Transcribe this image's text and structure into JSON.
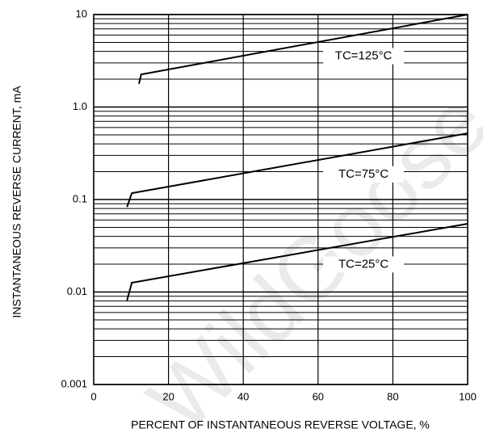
{
  "chart_data": {
    "type": "line",
    "ylabel": "INSTANTANEOUS REVERSE CURRENT, mA",
    "xlabel": "PERCENT OF INSTANTANEOUS REVERSE VOLTAGE, %",
    "watermark": "WildGoose",
    "xlim": [
      0,
      100
    ],
    "xticks": [
      0,
      20,
      40,
      60,
      80,
      100
    ],
    "ylim": [
      0.001,
      10
    ],
    "yticks": [
      0.001,
      0.01,
      0.1,
      {
        "value": 1,
        "label": "1.0"
      },
      10
    ],
    "ylog": true,
    "grid": true,
    "minor_grid": true,
    "series": [
      {
        "name": "TC=125°C",
        "color": "#000000",
        "x": [
          12.1,
          12.7,
          100
        ],
        "values": [
          1.78,
          2.25,
          10
        ]
      },
      {
        "name": "TC=75°C",
        "color": "#000000",
        "x": [
          8.9,
          10.2,
          100
        ],
        "values": [
          0.083,
          0.117,
          0.52
        ]
      },
      {
        "name": "TC=25°C",
        "color": "#000000",
        "x": [
          8.9,
          10.2,
          100
        ],
        "values": [
          0.0081,
          0.0126,
          0.0547
        ]
      }
    ]
  }
}
